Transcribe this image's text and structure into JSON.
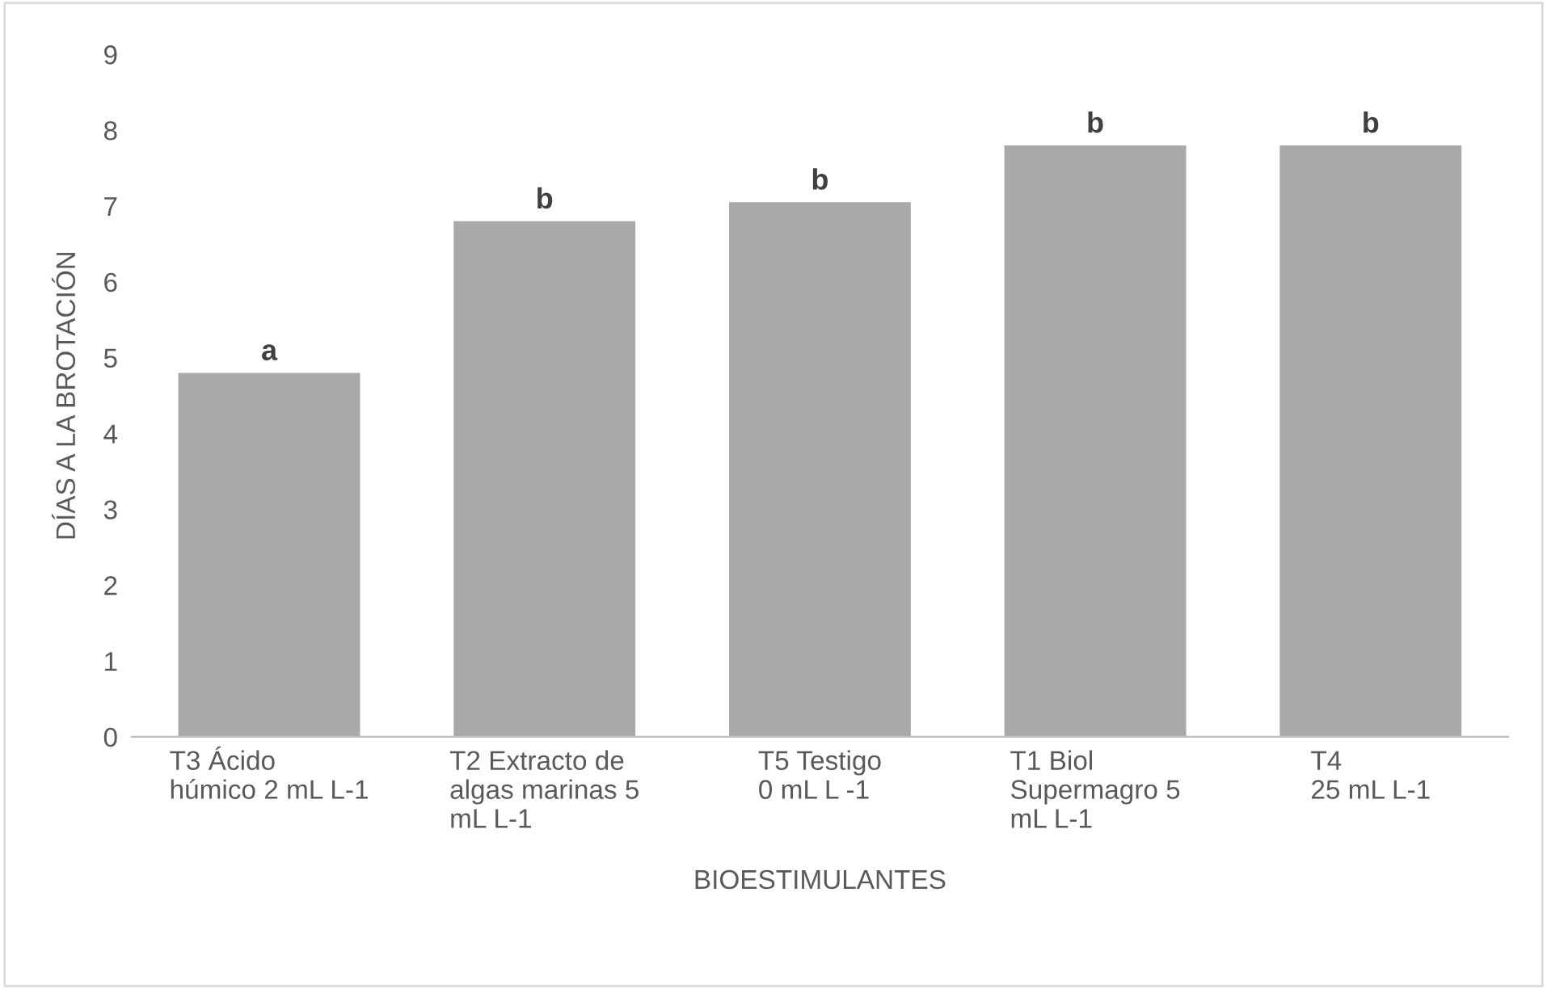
{
  "chart_data": {
    "type": "bar",
    "xlabel": "BIOESTIMULANTES",
    "ylabel": "DÍAS A LA BROTACIÓN",
    "categories": [
      "T3 Ácido\nhúmico 2 mL L-1",
      "T2 Extracto de\nalgas marinas 5\nmL L-1",
      "T5 Testigo\n0 mL L -1",
      "T1 Biol\nSupermagro 5\nmL L-1",
      "T4\n25 mL L-1"
    ],
    "values": [
      4.8,
      6.8,
      7.05,
      7.8,
      7.8
    ],
    "color": "#a9a9a9",
    "ylim": [
      0,
      9
    ],
    "yticks": [
      0,
      1,
      2,
      3,
      4,
      5,
      6,
      7,
      8,
      9
    ],
    "grid": false,
    "annotations": [
      {
        "text": "a",
        "x": "T3 Ácido\nhúmico 2 mL L-1",
        "y": 4.8
      },
      {
        "text": "b",
        "x": "T2 Extracto de\nalgas marinas 5\nmL L-1",
        "y": 6.8
      },
      {
        "text": "b",
        "x": "T5 Testigo\n0 mL L -1",
        "y": 7.05
      },
      {
        "text": "b",
        "x": "T1 Biol\nSupermagro 5\nmL L-1",
        "y": 7.8
      },
      {
        "text": "b",
        "x": "T4\n25 mL L-1",
        "y": 7.8
      }
    ]
  }
}
